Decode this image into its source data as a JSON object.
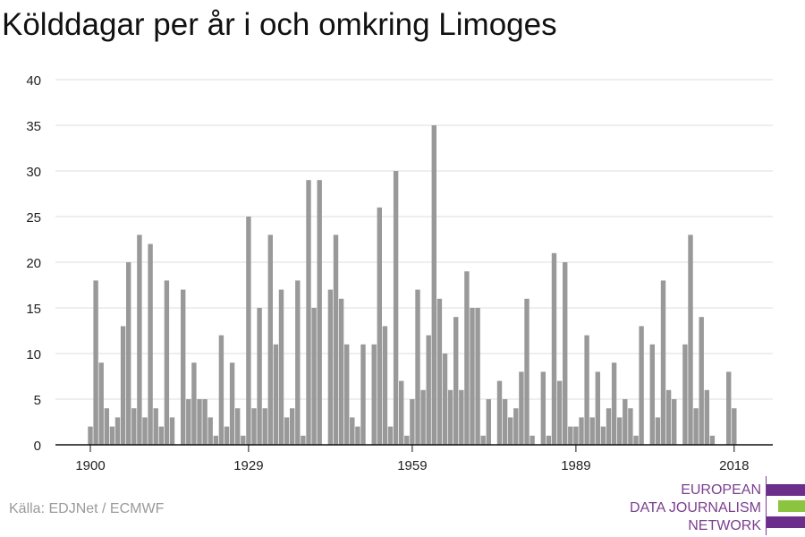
{
  "title": "Kölddagar per år i och omkring Limoges",
  "source": "Källa: EDJNet / ECMWF",
  "logo": {
    "line1": "EUROPEAN",
    "line2": "DATA JOURNALISM",
    "line3": "NETWORK",
    "colors": [
      "#6b2e8a",
      "#8bc53f",
      "#6b2e8a"
    ]
  },
  "chart_data": {
    "type": "bar",
    "title": "Kölddagar per år i och omkring Limoges",
    "xlabel": "",
    "ylabel": "",
    "x_start": 1900,
    "x_end": 2018,
    "xticks": [
      1900,
      1929,
      1959,
      1989,
      2018
    ],
    "yticks": [
      0,
      5,
      10,
      15,
      20,
      25,
      30,
      35,
      40
    ],
    "ylim": [
      0,
      40
    ],
    "grid": true,
    "bar_color": "#999999",
    "values": [
      2,
      18,
      9,
      4,
      2,
      3,
      13,
      20,
      4,
      23,
      3,
      22,
      4,
      2,
      18,
      3,
      0,
      17,
      5,
      9,
      5,
      5,
      3,
      1,
      12,
      2,
      9,
      4,
      1,
      25,
      4,
      15,
      4,
      23,
      11,
      17,
      3,
      4,
      18,
      1,
      29,
      15,
      29,
      0,
      17,
      23,
      16,
      11,
      3,
      2,
      11,
      0,
      11,
      26,
      13,
      2,
      30,
      7,
      1,
      5,
      17,
      6,
      12,
      35,
      16,
      10,
      6,
      14,
      6,
      19,
      15,
      15,
      1,
      5,
      0,
      7,
      5,
      3,
      4,
      8,
      16,
      1,
      0,
      8,
      1,
      21,
      7,
      20,
      2,
      2,
      3,
      12,
      3,
      8,
      2,
      4,
      9,
      3,
      5,
      4,
      1,
      13,
      0,
      11,
      3,
      18,
      6,
      5,
      0,
      11,
      23,
      4,
      14,
      6,
      1,
      0,
      0,
      8,
      4
    ]
  }
}
